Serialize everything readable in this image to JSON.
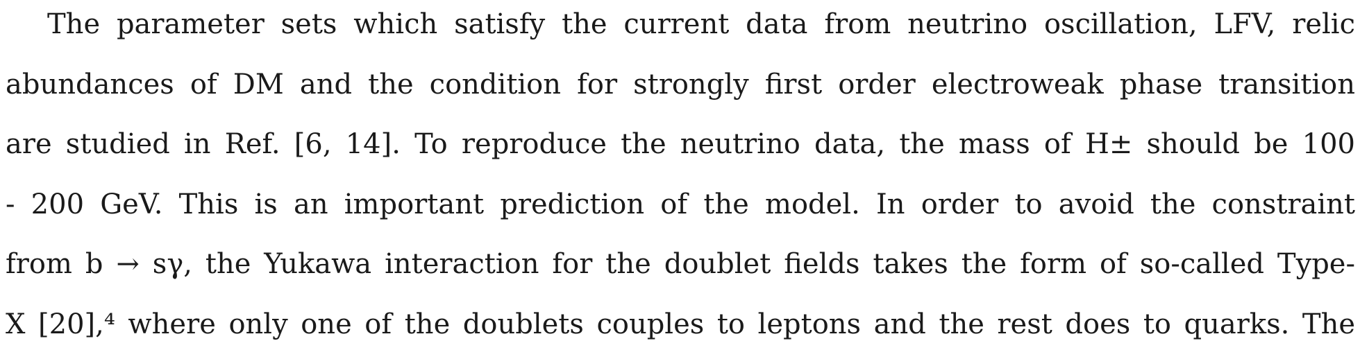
{
  "paragraph": {
    "lines": [
      "The parameter sets which satisfy the current data from neutrino oscillation, LFV, relic",
      "abundances of DM and the condition for strongly first order electroweak phase transition",
      "are studied in Ref. [6, 14]. To reproduce the neutrino data, the mass of H± should be 100",
      "- 200 GeV. This is an important prediction of the model. In order to avoid the constraint",
      "from b → sγ, the Yukawa interaction for the doublet fields takes the form of so-called Type-",
      "X [20],⁴ where only one of the doublets couples to leptons and the rest does to quarks. The"
    ]
  }
}
